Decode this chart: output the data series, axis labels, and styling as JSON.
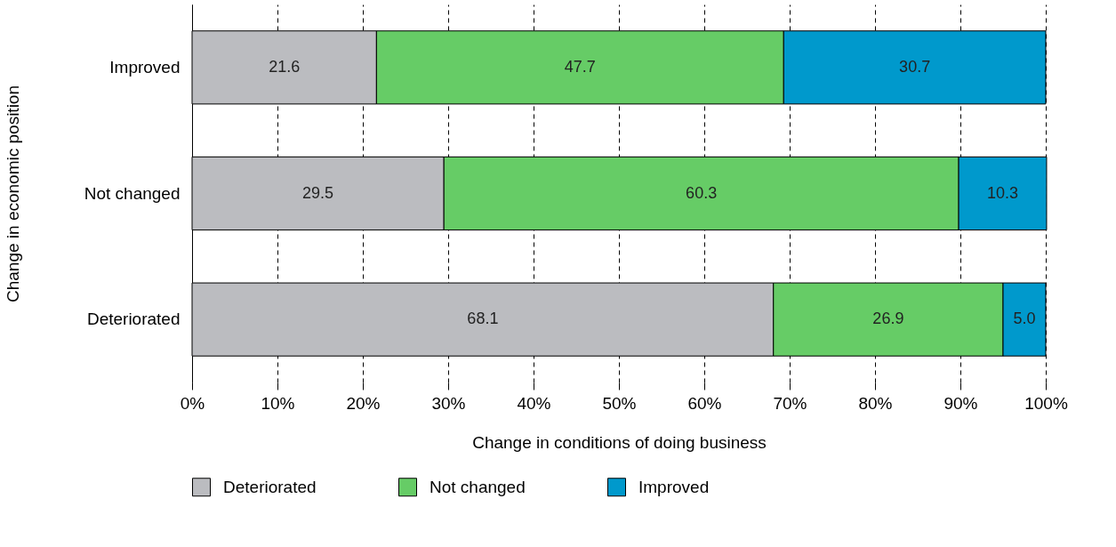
{
  "chart_data": {
    "type": "bar",
    "orientation": "horizontal",
    "stacked": true,
    "xlabel": "Change in conditions of doing business",
    "ylabel": "Change in economic position",
    "categories": [
      "Improved",
      "Not changed",
      "Deteriorated"
    ],
    "series": [
      {
        "name": "Deteriorated",
        "color": "#bbbcc0",
        "values": [
          21.6,
          29.5,
          68.1
        ],
        "value_labels": [
          "21.6",
          "29.5",
          "68.1"
        ]
      },
      {
        "name": "Not changed",
        "color": "#66cc66",
        "values": [
          47.7,
          60.3,
          26.9
        ],
        "value_labels": [
          "47.7",
          "60.3",
          "26.9"
        ]
      },
      {
        "name": "Improved",
        "color": "#0099cc",
        "values": [
          30.7,
          10.3,
          5.0
        ],
        "value_labels": [
          "30.7",
          "10.3",
          "5.0"
        ]
      }
    ],
    "xlim": [
      0,
      100
    ],
    "xticks": [
      {
        "value": 0,
        "label": "0%"
      },
      {
        "value": 10,
        "label": "10%"
      },
      {
        "value": 20,
        "label": "20%"
      },
      {
        "value": 30,
        "label": "30%"
      },
      {
        "value": 40,
        "label": "40%"
      },
      {
        "value": 50,
        "label": "50%"
      },
      {
        "value": 60,
        "label": "60%"
      },
      {
        "value": 70,
        "label": "70%"
      },
      {
        "value": 80,
        "label": "80%"
      },
      {
        "value": 90,
        "label": "90%"
      },
      {
        "value": 100,
        "label": "100%"
      }
    ],
    "grid": "x",
    "legend": "bottom"
  }
}
